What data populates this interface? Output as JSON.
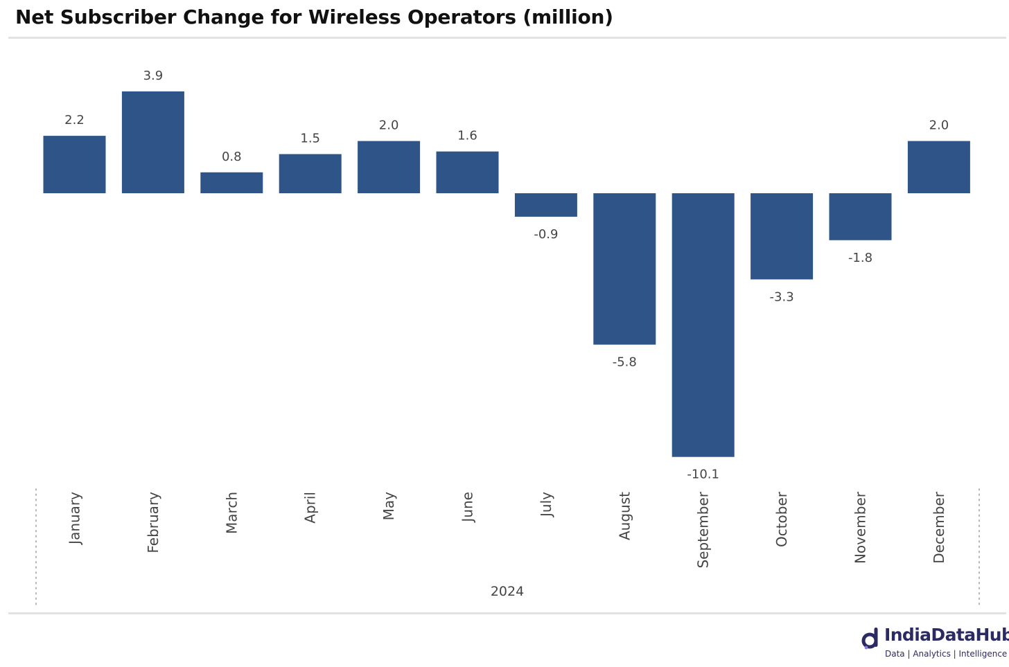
{
  "chart_data": {
    "type": "bar",
    "title": "Net Subscriber Change for Wireless Operators (million)",
    "categories": [
      "January",
      "February",
      "March",
      "April",
      "May",
      "June",
      "July",
      "August",
      "September",
      "October",
      "November",
      "December"
    ],
    "values": [
      2.2,
      3.9,
      0.8,
      1.5,
      2.0,
      1.6,
      -0.9,
      -5.8,
      -10.1,
      -3.3,
      -1.8,
      2.0
    ],
    "value_labels": [
      "2.2",
      "3.9",
      "0.8",
      "1.5",
      "2.0",
      "1.6",
      "-0.9",
      "-5.8",
      "-10.1",
      "-3.3",
      "-1.8",
      "2.0"
    ],
    "x_group_label": "2024",
    "ylim": [
      -10.1,
      3.9
    ],
    "grid": false,
    "legend": "none",
    "bar_color": "#2e5488",
    "data_labels": true
  },
  "brand": {
    "name": "IndiaDataHub",
    "tagline": "Data | Analytics | Intelligence",
    "color": "#2b2a63"
  }
}
